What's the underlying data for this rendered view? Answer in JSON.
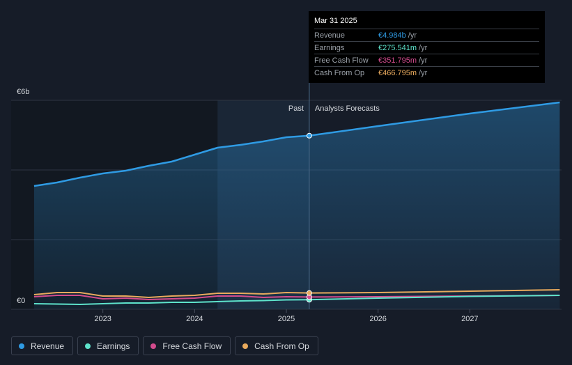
{
  "chart_data": {
    "type": "line",
    "x": [
      2022.25,
      2022.5,
      2022.75,
      2023,
      2023.25,
      2023.5,
      2023.75,
      2024,
      2024.25,
      2024.5,
      2024.75,
      2025,
      2025.25,
      2026,
      2027,
      2027.98
    ],
    "series": [
      {
        "name": "Revenue",
        "color": "#2f9be4",
        "values": [
          3.54,
          3.64,
          3.78,
          3.9,
          3.98,
          4.12,
          4.24,
          4.44,
          4.64,
          4.72,
          4.82,
          4.94,
          4.984,
          5.26,
          5.62,
          5.94
        ]
      },
      {
        "name": "Earnings",
        "color": "#5ee3cb",
        "values": [
          0.16,
          0.15,
          0.14,
          0.16,
          0.18,
          0.18,
          0.2,
          0.2,
          0.22,
          0.24,
          0.25,
          0.27,
          0.275,
          0.32,
          0.37,
          0.4
        ]
      },
      {
        "name": "Free Cash Flow",
        "color": "#d24b8d",
        "values": [
          0.36,
          0.4,
          0.4,
          0.3,
          0.32,
          0.28,
          0.3,
          0.32,
          0.38,
          0.38,
          0.34,
          0.36,
          0.352,
          0.36,
          0.38,
          0.4
        ]
      },
      {
        "name": "Cash From Op",
        "color": "#e9aa5d",
        "values": [
          0.42,
          0.48,
          0.48,
          0.38,
          0.38,
          0.34,
          0.38,
          0.4,
          0.46,
          0.46,
          0.44,
          0.48,
          0.467,
          0.48,
          0.52,
          0.56
        ]
      }
    ],
    "xlim": [
      2022,
      2028
    ],
    "xticks": [
      2023,
      2024,
      2025,
      2026,
      2027
    ],
    "ylim": [
      0,
      6
    ],
    "yticks": [
      {
        "value": 0,
        "label": "€0"
      },
      {
        "value": 6,
        "label": "€6b"
      }
    ],
    "ygrid": [
      0,
      2,
      4,
      6
    ],
    "highlight_start": 2024.25,
    "forecast_start": 2025.25,
    "annotations": {
      "past": "Past",
      "forecast": "Analysts Forecasts"
    },
    "tooltip": {
      "title": "Mar 31 2025",
      "unit": "/yr",
      "values": [
        {
          "value": 4.984,
          "label": "€4.984b"
        },
        {
          "value": 0.275541,
          "label": "€275.541m"
        },
        {
          "value": 0.351795,
          "label": "€351.795m"
        },
        {
          "value": 0.466795,
          "label": "€466.795m"
        }
      ]
    }
  }
}
